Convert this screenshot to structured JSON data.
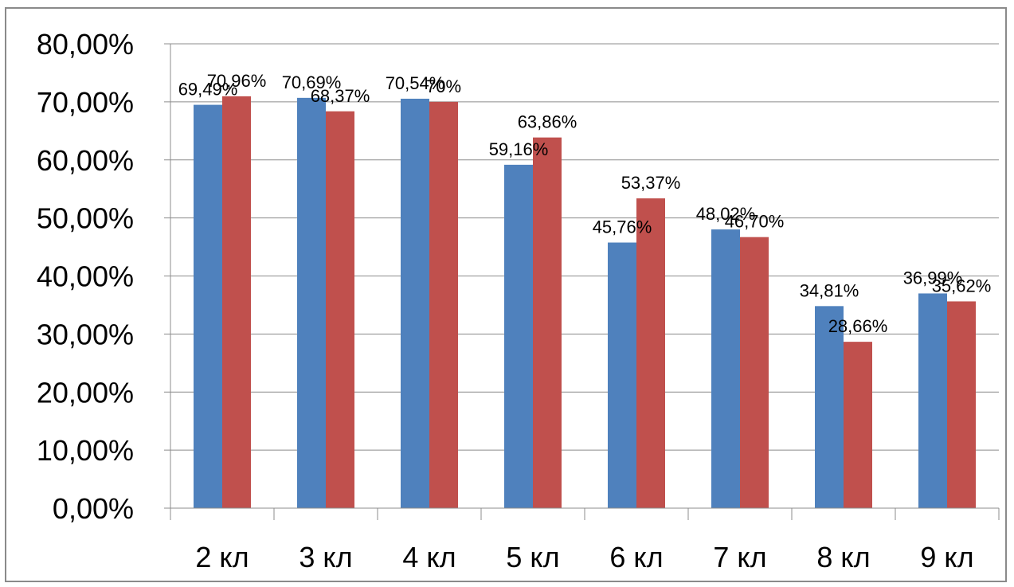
{
  "chart_data": {
    "type": "bar",
    "categories": [
      "2 кл",
      "3 кл",
      "4 кл",
      "5 кл",
      "6 кл",
      "7 кл",
      "8 кл",
      "9 кл"
    ],
    "series": [
      {
        "color": "#4F81BD",
        "values": [
          69.49,
          70.69,
          70.54,
          59.16,
          45.76,
          48.02,
          34.81,
          36.99
        ],
        "labels": [
          "69,49%",
          "70,69%",
          "70,54%",
          "59,16%",
          "45,76%",
          "48,02%",
          "34,81%",
          "36,99%"
        ]
      },
      {
        "color": "#C0504D",
        "values": [
          70.96,
          68.37,
          70.0,
          63.86,
          53.37,
          46.7,
          28.66,
          35.62
        ],
        "labels": [
          "70,96%",
          "68,37%",
          "70%",
          "63,86%",
          "53,37%",
          "46,70%",
          "28,66%",
          "35,62%"
        ]
      }
    ],
    "yticks": [
      0,
      10,
      20,
      30,
      40,
      50,
      60,
      70,
      80
    ],
    "ytick_labels": [
      "0,00%",
      "10,00%",
      "20,00%",
      "30,00%",
      "40,00%",
      "50,00%",
      "60,00%",
      "70,00%",
      "80,00%"
    ],
    "ylim": [
      0,
      80
    ],
    "grid": true,
    "legend": "none"
  }
}
